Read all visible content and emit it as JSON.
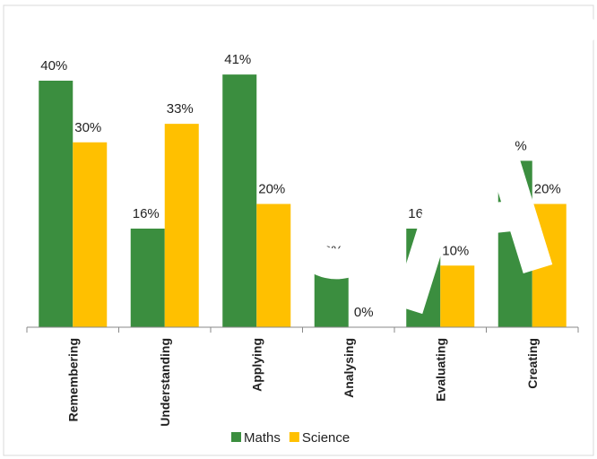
{
  "chart_data": {
    "type": "bar",
    "categories": [
      "Remembering",
      "Understanding",
      "Applying",
      "Analysing",
      "Evaluating",
      "Creating"
    ],
    "series": [
      {
        "name": "Maths",
        "color": "#3b8e3f",
        "values": [
          40,
          16,
          41,
          10,
          16,
          27
        ],
        "value_labels": [
          "40%",
          "16%",
          "41%",
          "10%",
          "16%",
          "27%"
        ]
      },
      {
        "name": "Science",
        "color": "#ffc000",
        "values": [
          30,
          33,
          20,
          0,
          10,
          20
        ],
        "value_labels": [
          "30%",
          "33%",
          "20%",
          "0%",
          "10%",
          "20%"
        ]
      }
    ],
    "legend": "bottom"
  }
}
